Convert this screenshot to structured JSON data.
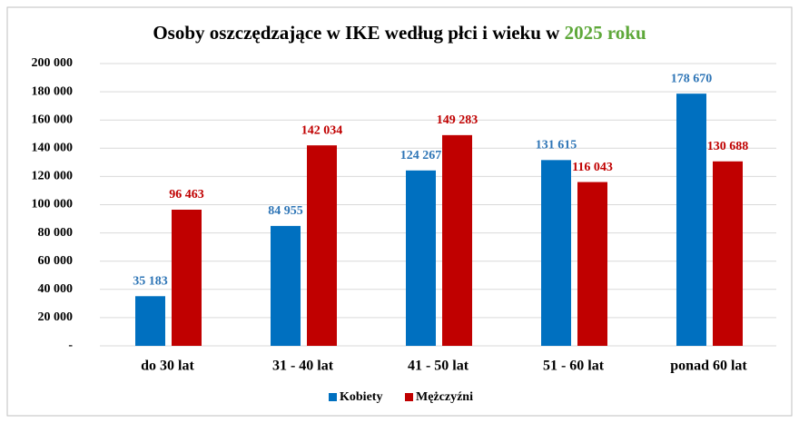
{
  "chart_data": {
    "type": "bar",
    "title": "Osoby oszczędzające w IKE według płci i wieku w",
    "title_highlight": "2025 roku",
    "title_highlight_color": "#5ea83a",
    "categories": [
      "do 30 lat",
      "31 - 40 lat",
      "41 - 50 lat",
      "51 - 60 lat",
      "ponad 60 lat"
    ],
    "series": [
      {
        "name": "Kobiety",
        "color": "#0070c0",
        "label_color": "#2e75b6",
        "values": [
          35183,
          84955,
          124267,
          131615,
          178670
        ],
        "value_labels": [
          "35 183",
          "84 955",
          "124 267",
          "131 615",
          "178 670"
        ]
      },
      {
        "name": "Mężczyźni",
        "color": "#c00000",
        "label_color": "#c00000",
        "values": [
          96463,
          142034,
          149283,
          116043,
          130688
        ],
        "value_labels": [
          "96 463",
          "142 034",
          "149 283",
          "116 043",
          "130 688"
        ]
      }
    ],
    "ylim": [
      0,
      200000
    ],
    "yticks": [
      {
        "value": 0,
        "label": "-"
      },
      {
        "value": 20000,
        "label": "20 000"
      },
      {
        "value": 40000,
        "label": "40 000"
      },
      {
        "value": 60000,
        "label": "60 000"
      },
      {
        "value": 80000,
        "label": "80 000"
      },
      {
        "value": 100000,
        "label": "100 000"
      },
      {
        "value": 120000,
        "label": "120 000"
      },
      {
        "value": 140000,
        "label": "140 000"
      },
      {
        "value": 160000,
        "label": "160 000"
      },
      {
        "value": 180000,
        "label": "180 000"
      },
      {
        "value": 200000,
        "label": "200 000"
      }
    ],
    "grid": true,
    "legend": "bottom"
  }
}
